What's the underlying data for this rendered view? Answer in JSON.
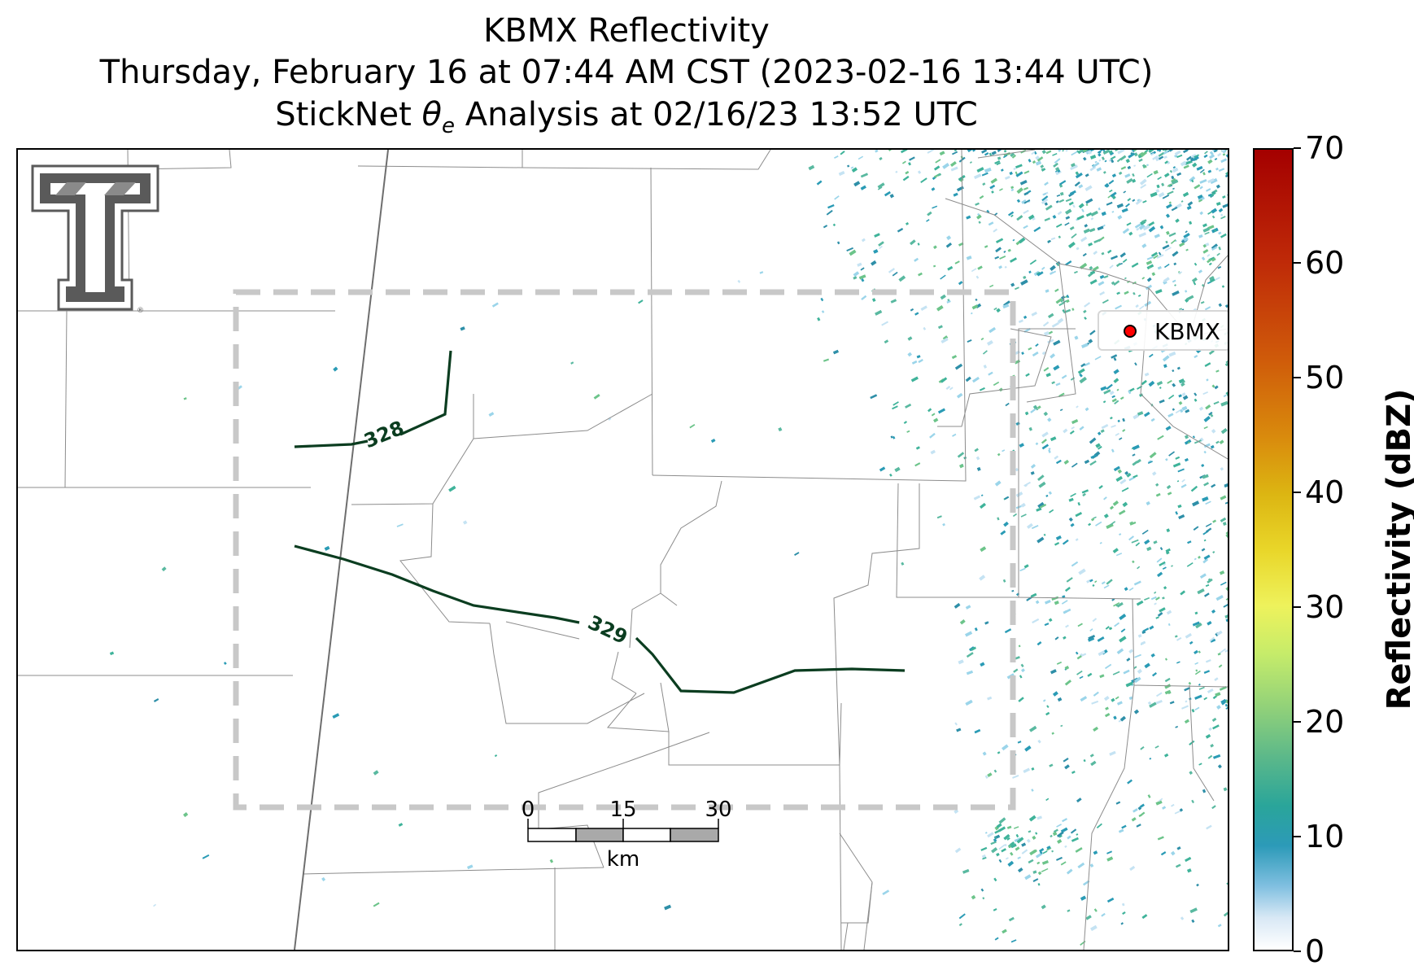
{
  "title": {
    "line1": "KBMX Reflectivity",
    "line2": "Thursday, February 16 at 07:44 AM CST (2023-02-16 13:44 UTC)",
    "line3_prefix": "StickNet ",
    "line3_symbol": "θ",
    "line3_subscript": "e",
    "line3_suffix": " Analysis at 02/16/23 13:52 UTC"
  },
  "legend": {
    "station_label": "KBMX",
    "marker_color": "#ff0000"
  },
  "contours": [
    {
      "label": "328",
      "color": "#0b3d20"
    },
    {
      "label": "329",
      "color": "#0b3d20"
    }
  ],
  "colorbar": {
    "label": "Reflectivity (dBZ)",
    "ticks": [
      "0",
      "10",
      "20",
      "30",
      "40",
      "50",
      "60",
      "70"
    ],
    "range": [
      0,
      70
    ],
    "colormap": "white-blue-teal-green-yellow-orange-red"
  },
  "scalebar": {
    "ticks": [
      "0",
      "15",
      "30"
    ],
    "unit": "km"
  },
  "logo": {
    "icon": "texas-tech-double-t-logo",
    "color": "#5a5a5a"
  },
  "analysis_box": {
    "color": "#c8c8c8",
    "style": "dashed"
  },
  "colors": {
    "county_lines": "#8c8c8c",
    "state_line": "#6e6e6e"
  }
}
